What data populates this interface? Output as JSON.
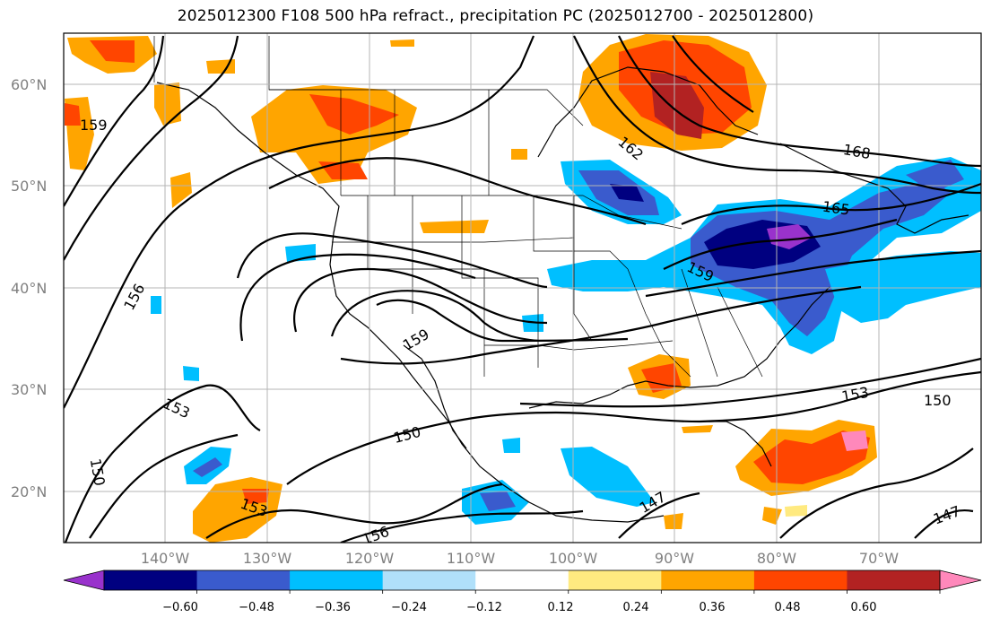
{
  "title": "2025012300 F108 500 hPa refract., precipitation PC (2025012700 - 2025012800)",
  "lat_labels": [
    "60°N",
    "50°N",
    "40°N",
    "30°N",
    "20°N"
  ],
  "lon_labels": [
    "140°W",
    "130°W",
    "120°W",
    "110°W",
    "100°W",
    "90°W",
    "80°W",
    "70°W"
  ],
  "contour_labels": [
    "159",
    "156",
    "153",
    "150",
    "159",
    "150",
    "156",
    "153",
    "162",
    "165",
    "168",
    "159",
    "153",
    "150",
    "147",
    "147"
  ],
  "colorbar": {
    "ticks": [
      "−0.60",
      "−0.48",
      "−0.36",
      "−0.24",
      "−0.12",
      "0.12",
      "0.24",
      "0.36",
      "0.48",
      "0.60"
    ],
    "colors": [
      "#9932cc",
      "#000080",
      "#3a5bcd",
      "#00bfff",
      "#b0e0fa",
      "#ffffff",
      "#ffea80",
      "#ffa500",
      "#ff4500",
      "#b22222",
      "#ff88bb"
    ]
  },
  "colors": {
    "grid": "#b4b4b4",
    "contour": "#000000",
    "tick_label": "#808080"
  }
}
